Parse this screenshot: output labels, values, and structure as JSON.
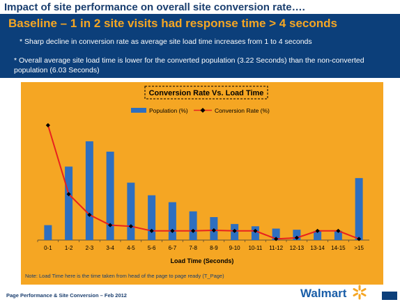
{
  "slide": {
    "title": "Impact of site performance on overall site conversion rate….",
    "headline": "Baseline – 1 in 2 site visits had response time > 4 seconds",
    "bullet1": "* Sharp decline in conversion rate as average site load time increases from 1 to 4 seconds",
    "bullet2": "* Overall average site load time is lower for the converted population (3.22 Seconds) than the non-converted population (6.03 Seconds)",
    "note": "Note: Load Time here is the time taken from head of the page to page ready (T_Page)",
    "footer": "Page Performance & Site Conversion – Feb 2012",
    "logo_text": "Walmart"
  },
  "colors": {
    "title": "#1a3e6e",
    "banner": "#0c3f7a",
    "headline": "#f5a623",
    "panel": "#f5a623",
    "bars": "#2e6fc0",
    "line": "#e8211e",
    "markers": "#000000",
    "spark": "#f5a623"
  },
  "chart_data": {
    "type": "bar",
    "title": "Conversion Rate Vs. Load Time",
    "xlabel": "Load Time (Seconds)",
    "ylabel": "",
    "legend_position": "top",
    "grid": false,
    "categories": [
      "0-1",
      "1-2",
      "2-3",
      "3-4",
      "4-5",
      "5-6",
      "6-7",
      "7-8",
      "8-9",
      "9-10",
      "10-11",
      "11-12",
      "12-13",
      "13-14",
      "14-15",
      ">15"
    ],
    "ylim": [
      0,
      100
    ],
    "series": [
      {
        "name": "Population (%)",
        "type": "bar",
        "values": [
          13,
          64,
          86,
          77,
          50,
          39,
          33,
          25,
          20,
          14,
          12,
          10,
          9,
          8,
          8,
          54
        ]
      },
      {
        "name": "Conversion Rate (%)",
        "type": "line",
        "values": [
          100,
          40,
          22,
          13,
          12,
          8,
          8,
          8,
          8.5,
          8,
          8,
          1,
          2,
          8,
          8,
          1
        ]
      }
    ]
  }
}
